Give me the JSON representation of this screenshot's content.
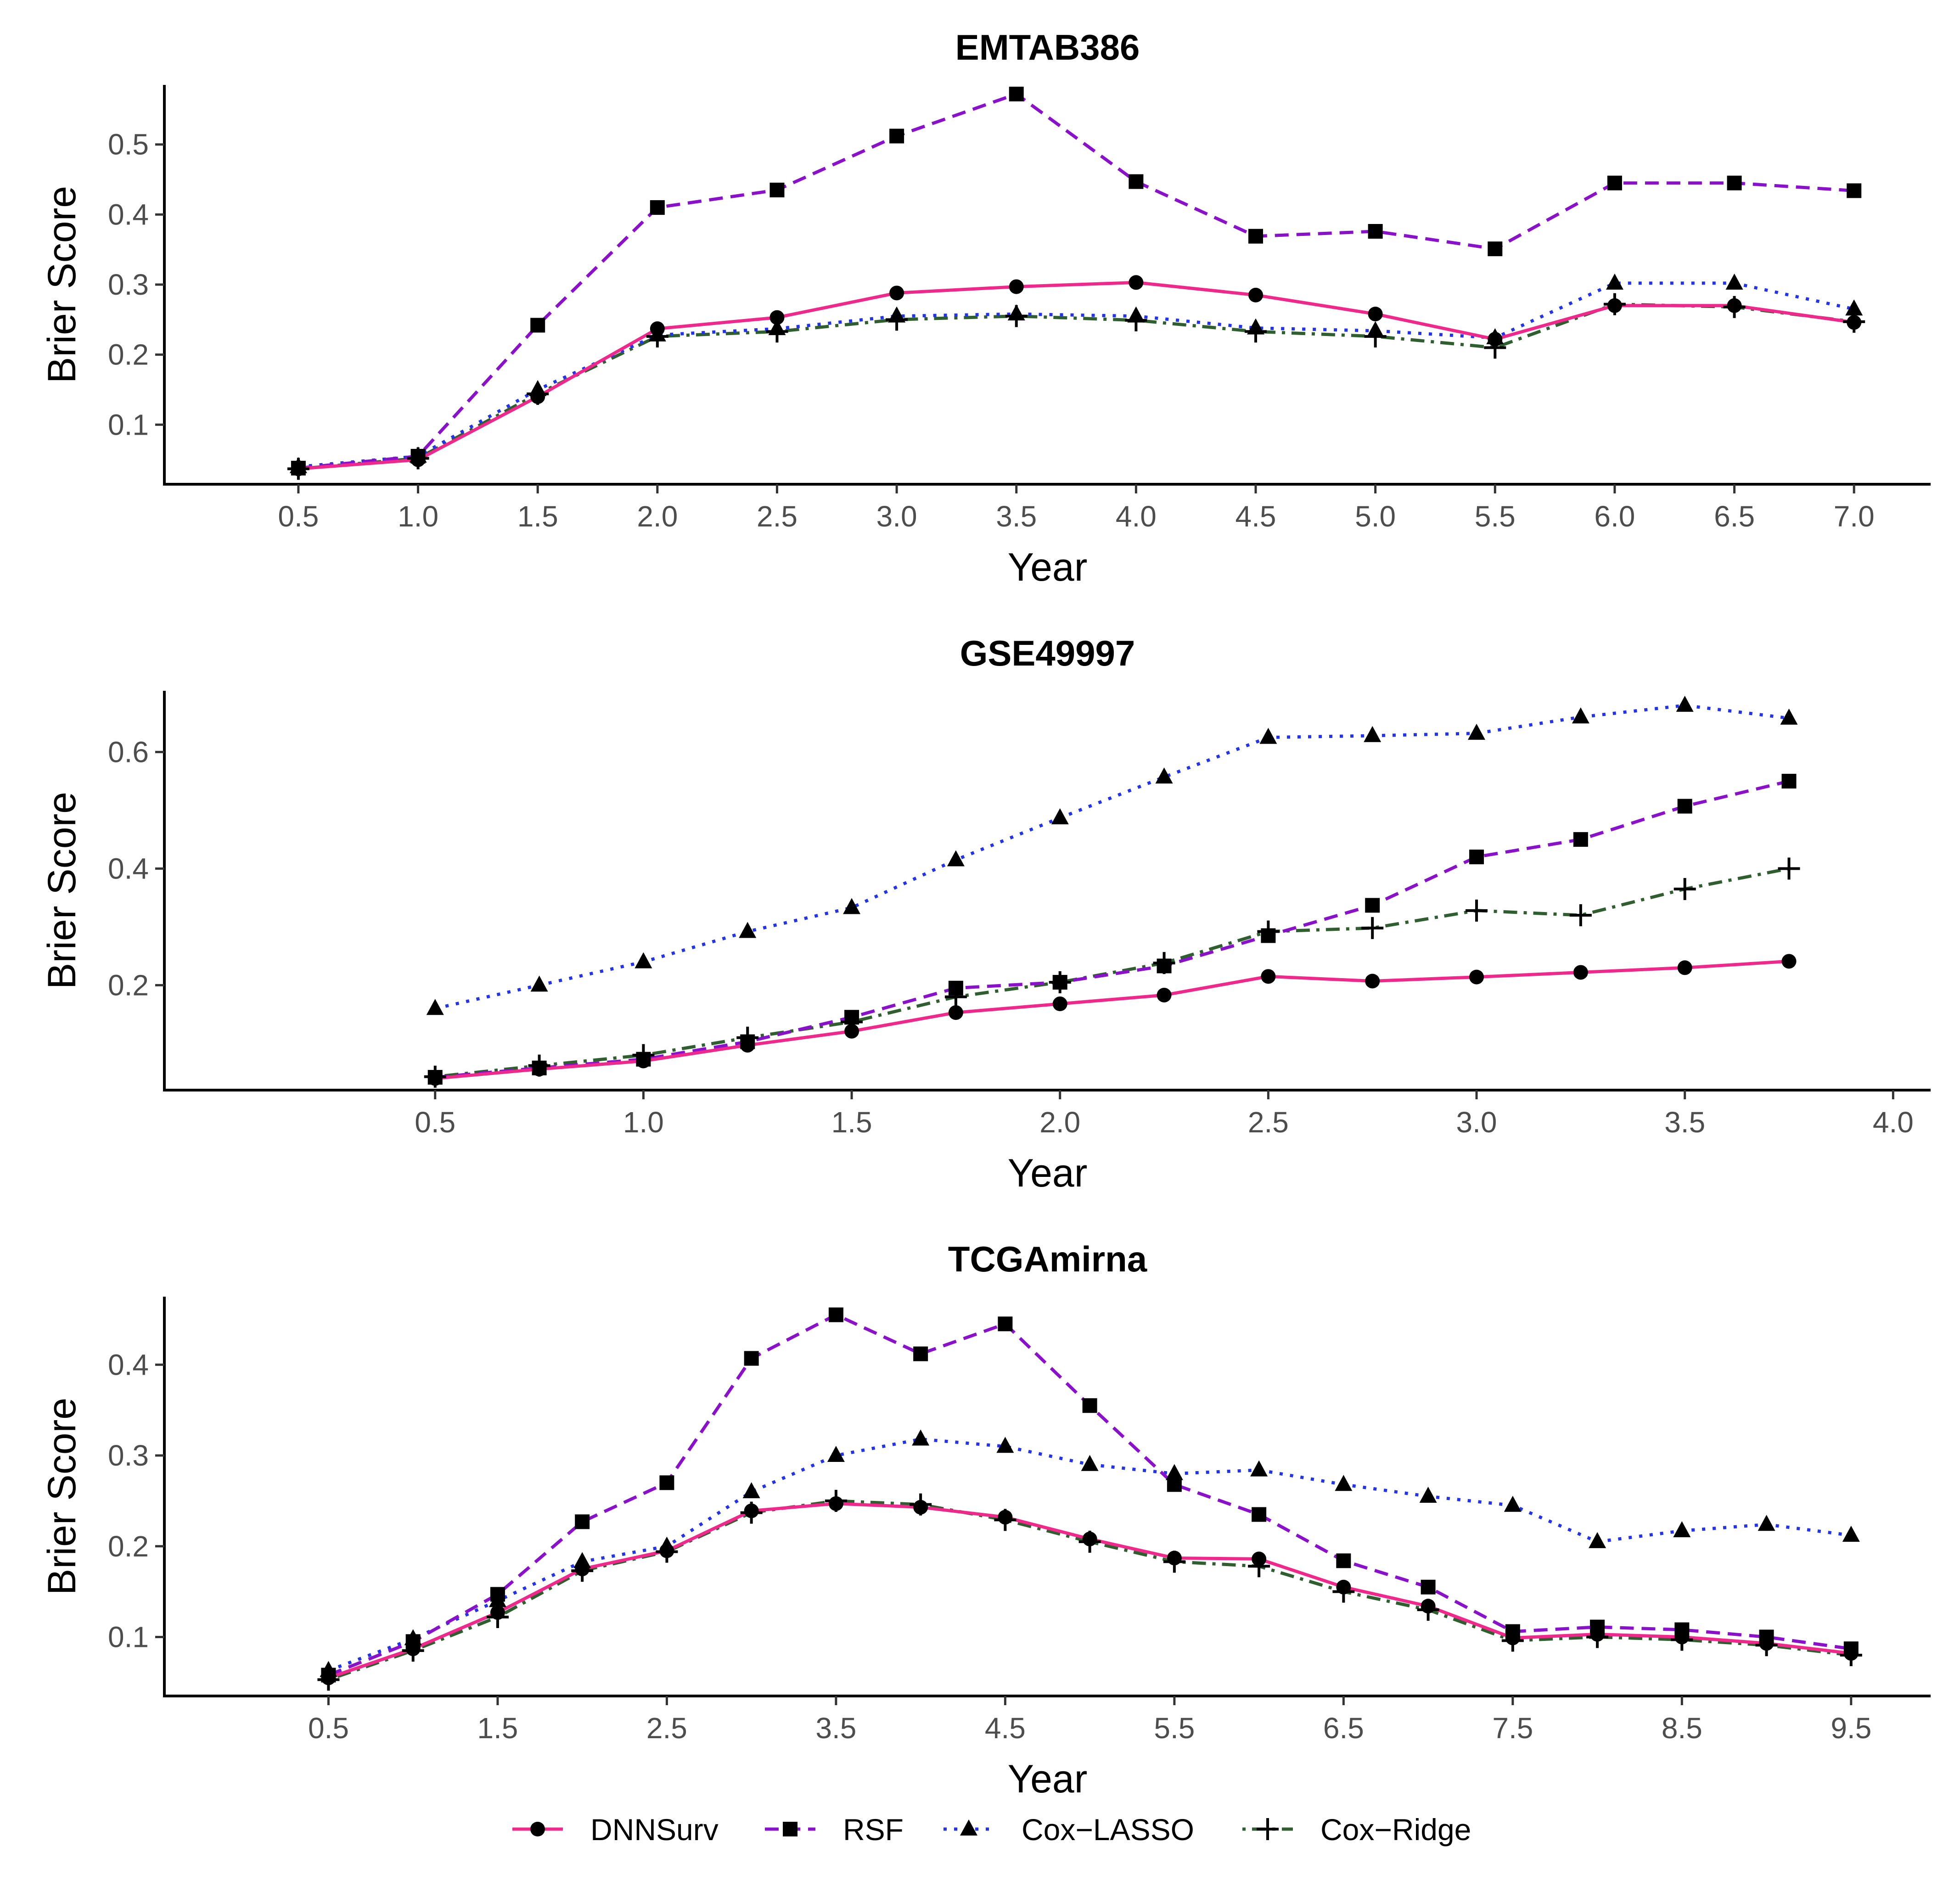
{
  "legend": {
    "placement": "bottom",
    "entries": [
      {
        "name": "DNNSurv",
        "color": "#F0288C",
        "line": "solid",
        "marker": "circle"
      },
      {
        "name": "RSF",
        "color": "#8B10CC",
        "line": "dashed",
        "marker": "square"
      },
      {
        "name": "Cox−LASSO",
        "color": "#2233EE",
        "line": "dotted",
        "marker": "triangle"
      },
      {
        "name": "Cox−Ridge",
        "color": "#2F5F2F",
        "line": "dotdash",
        "marker": "plus"
      }
    ]
  },
  "chart_data": [
    {
      "type": "line",
      "title": "EMTAB386",
      "xlabel": "Year",
      "ylabel": "Brier Score",
      "grid": false,
      "xlim": [
        -0.06,
        7.32
      ],
      "ylim": [
        0.015,
        0.585
      ],
      "xticks": [
        "0.5",
        "1.0",
        "1.5",
        "2.0",
        "2.5",
        "3.0",
        "3.5",
        "4.0",
        "4.5",
        "5.0",
        "5.5",
        "6.0",
        "6.5",
        "7.0"
      ],
      "yticks": [
        "0.1",
        "0.2",
        "0.3",
        "0.4",
        "0.5"
      ],
      "x": [
        0.5,
        1.0,
        1.5,
        2.0,
        2.5,
        3.0,
        3.5,
        4.0,
        4.5,
        5.0,
        5.5,
        6.0,
        6.5,
        7.0
      ],
      "series": [
        {
          "name": "DNNSurv",
          "values": [
            0.037,
            0.05,
            0.14,
            0.237,
            0.253,
            0.288,
            0.297,
            0.303,
            0.285,
            0.258,
            0.222,
            0.27,
            0.27,
            0.246
          ]
        },
        {
          "name": "RSF",
          "values": [
            0.038,
            0.055,
            0.242,
            0.41,
            0.435,
            0.512,
            0.572,
            0.447,
            0.369,
            0.376,
            0.351,
            0.445,
            0.445,
            0.434
          ]
        },
        {
          "name": "Cox−LASSO",
          "values": [
            0.04,
            0.055,
            0.15,
            0.228,
            0.237,
            0.255,
            0.258,
            0.255,
            0.238,
            0.234,
            0.224,
            0.302,
            0.302,
            0.265
          ]
        },
        {
          "name": "Cox−Ridge",
          "values": [
            0.037,
            0.052,
            0.144,
            0.226,
            0.233,
            0.25,
            0.255,
            0.249,
            0.233,
            0.226,
            0.21,
            0.272,
            0.268,
            0.247
          ]
        }
      ]
    },
    {
      "type": "line",
      "title": "GSE49997",
      "xlabel": "Year",
      "ylabel": "Brier Score",
      "grid": false,
      "xlim": [
        -0.15,
        4.09
      ],
      "ylim": [
        0.02,
        0.705
      ],
      "xticks": [
        "0.5",
        "1.0",
        "1.5",
        "2.0",
        "2.5",
        "3.0",
        "3.5",
        "4.0"
      ],
      "yticks": [
        "0.2",
        "0.4",
        "0.6"
      ],
      "x": [
        0.5,
        0.75,
        1.0,
        1.25,
        1.5,
        1.75,
        2.0,
        2.25,
        2.5,
        2.75,
        3.0,
        3.25,
        3.5,
        3.75
      ],
      "series": [
        {
          "name": "DNNSurv",
          "values": [
            0.04,
            0.056,
            0.07,
            0.097,
            0.121,
            0.153,
            0.168,
            0.183,
            0.215,
            0.207,
            0.214,
            0.222,
            0.23,
            0.241
          ]
        },
        {
          "name": "RSF",
          "values": [
            0.042,
            0.058,
            0.073,
            0.103,
            0.145,
            0.195,
            0.205,
            0.233,
            0.285,
            0.337,
            0.42,
            0.45,
            0.507,
            0.55
          ]
        },
        {
          "name": "Cox−LASSO",
          "values": [
            0.16,
            0.2,
            0.24,
            0.292,
            0.333,
            0.415,
            0.487,
            0.557,
            0.625,
            0.628,
            0.632,
            0.66,
            0.68,
            0.658
          ]
        },
        {
          "name": "Cox−Ridge",
          "values": [
            0.043,
            0.062,
            0.08,
            0.11,
            0.137,
            0.18,
            0.205,
            0.238,
            0.292,
            0.298,
            0.328,
            0.32,
            0.365,
            0.4
          ]
        }
      ]
    },
    {
      "type": "line",
      "title": "TCGAmirna",
      "xlabel": "Year",
      "ylabel": "Brier Score",
      "grid": false,
      "xlim": [
        -0.47,
        9.97
      ],
      "ylim": [
        0.035,
        0.475
      ],
      "xticks": [
        "0.5",
        "1.5",
        "2.5",
        "3.5",
        "4.5",
        "5.5",
        "6.5",
        "7.5",
        "8.5",
        "9.5"
      ],
      "yticks": [
        "0.1",
        "0.2",
        "0.3",
        "0.4"
      ],
      "x": [
        0.5,
        1.0,
        1.5,
        2.0,
        2.5,
        3.0,
        3.5,
        4.0,
        4.5,
        5.0,
        5.5,
        6.0,
        6.5,
        7.0,
        7.5,
        8.0,
        8.5,
        9.0,
        9.5
      ],
      "series": [
        {
          "name": "DNNSurv",
          "values": [
            0.055,
            0.087,
            0.127,
            0.175,
            0.195,
            0.239,
            0.247,
            0.243,
            0.232,
            0.208,
            0.187,
            0.186,
            0.155,
            0.134,
            0.099,
            0.103,
            0.1,
            0.093,
            0.082
          ]
        },
        {
          "name": "RSF",
          "values": [
            0.058,
            0.095,
            0.147,
            0.227,
            0.27,
            0.407,
            0.455,
            0.412,
            0.445,
            0.355,
            0.268,
            0.235,
            0.184,
            0.155,
            0.106,
            0.111,
            0.108,
            0.1,
            0.087
          ]
        },
        {
          "name": "Cox−LASSO",
          "values": [
            0.063,
            0.098,
            0.14,
            0.183,
            0.2,
            0.26,
            0.3,
            0.318,
            0.31,
            0.29,
            0.28,
            0.284,
            0.268,
            0.255,
            0.245,
            0.205,
            0.217,
            0.224,
            0.212
          ]
        },
        {
          "name": "Cox−Ridge",
          "values": [
            0.053,
            0.085,
            0.122,
            0.173,
            0.194,
            0.237,
            0.25,
            0.246,
            0.229,
            0.205,
            0.183,
            0.178,
            0.15,
            0.13,
            0.096,
            0.1,
            0.097,
            0.091,
            0.08
          ]
        }
      ]
    }
  ]
}
